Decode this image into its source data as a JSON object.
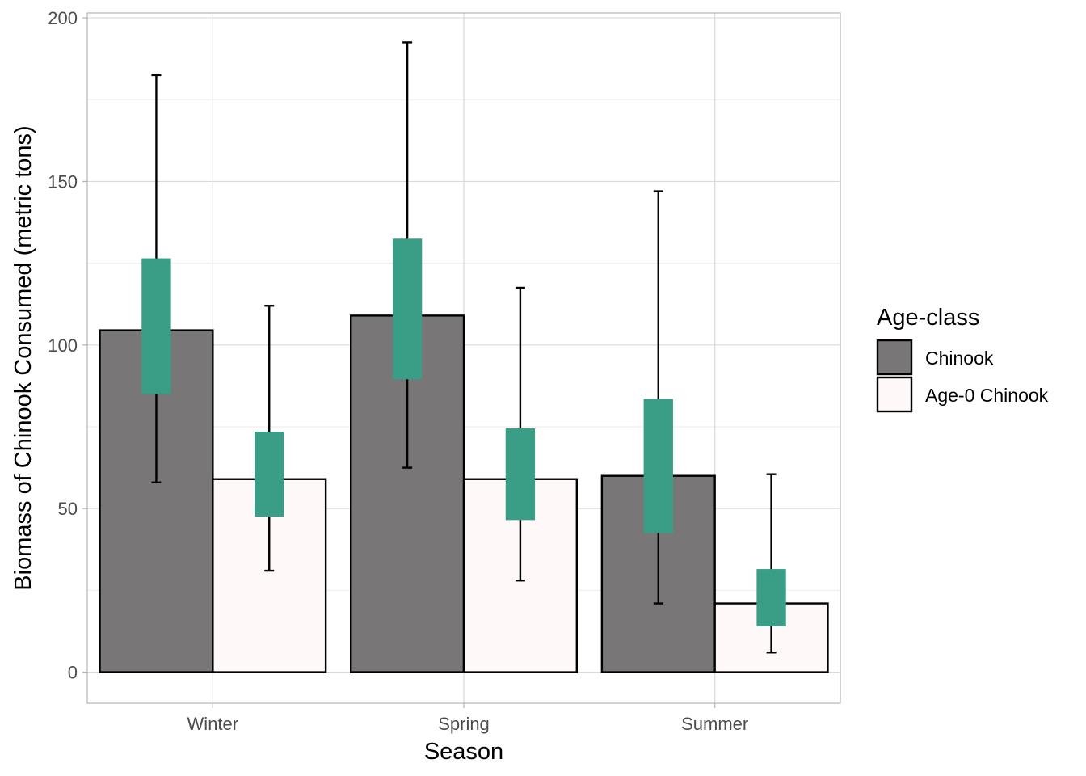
{
  "chart_data": {
    "type": "bar",
    "title": "",
    "xlabel": "Season",
    "ylabel": "Biomass of Chinook Consumed (metric tons)",
    "categories": [
      "Winter",
      "Spring",
      "Summer"
    ],
    "ylim": [
      -9.5,
      201.5
    ],
    "yticks": [
      0,
      50,
      100,
      150,
      200
    ],
    "grid": true,
    "legend": {
      "title": "Age-class",
      "position": "right"
    },
    "series": [
      {
        "name": "Chinook",
        "color": "#787676",
        "values": [
          104.5,
          109,
          60
        ],
        "error_low": [
          58,
          62.5,
          21
        ],
        "error_high": [
          182.5,
          192.5,
          147
        ],
        "box_low": [
          85,
          89.5,
          42.5
        ],
        "box_high": [
          126.5,
          132.5,
          83.5
        ]
      },
      {
        "name": "Age-0 Chinook",
        "color": "#fff8f8",
        "values": [
          59,
          59,
          21
        ],
        "error_low": [
          31,
          28,
          6
        ],
        "error_high": [
          112,
          117.5,
          60.5
        ],
        "box_low": [
          47.5,
          46.5,
          14
        ],
        "box_high": [
          73.5,
          74.5,
          31.5
        ]
      }
    ],
    "interval_color": "#3a9e87"
  }
}
